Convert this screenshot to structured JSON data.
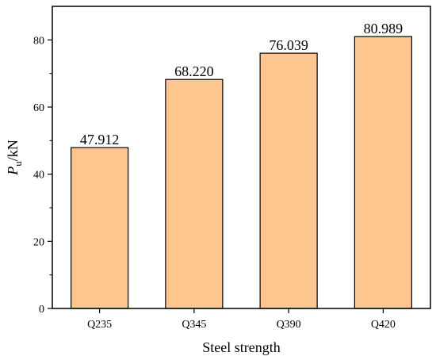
{
  "chart_data": {
    "type": "bar",
    "categories": [
      "Q235",
      "Q345",
      "Q390",
      "Q420"
    ],
    "values": [
      47.912,
      68.22,
      76.039,
      80.989
    ],
    "value_labels": [
      "47.912",
      "68.220",
      "76.039",
      "80.989"
    ],
    "xlabel": "Steel strength",
    "ylabel": {
      "main": "P",
      "sub": "u",
      "suffix": "/kN"
    },
    "ylim": [
      0,
      90
    ],
    "yticks": [
      0,
      20,
      40,
      60,
      80
    ],
    "grid": false,
    "bar_color": "#FDC68F",
    "bar_edge_color": "#000000"
  }
}
